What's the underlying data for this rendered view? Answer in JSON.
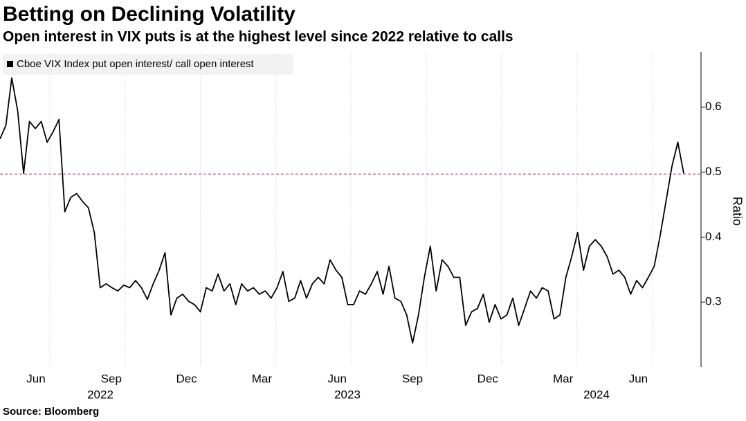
{
  "chart_data": {
    "type": "line",
    "title": "Betting on Declining Volatility",
    "subtitle": "Open interest in VIX puts is at the highest level since 2022 relative to calls",
    "source": "Source: Bloomberg",
    "y_label": "Ratio",
    "x_labels": [
      "Jun",
      "Sep",
      "Dec",
      "Mar",
      "Jun",
      "Sep",
      "Dec",
      "Mar",
      "Jun"
    ],
    "year_labels": [
      "2022",
      "2023",
      "2024"
    ],
    "ylim": [
      0.2,
      0.685
    ],
    "yticks": [
      0.3,
      0.4,
      0.5,
      0.6
    ],
    "reference_line": 0.497,
    "reference_color": "#c0394b",
    "grid": true,
    "legend": "top-left",
    "series": [
      {
        "name": "Cboe VIX Index put open interest/ call open interest",
        "color": "#000000",
        "values": [
          0.551,
          0.572,
          0.645,
          0.594,
          0.498,
          0.578,
          0.567,
          0.578,
          0.546,
          0.562,
          0.581,
          0.439,
          0.461,
          0.467,
          0.455,
          0.445,
          0.407,
          0.322,
          0.328,
          0.322,
          0.317,
          0.326,
          0.322,
          0.333,
          0.322,
          0.304,
          0.328,
          0.349,
          0.376,
          0.28,
          0.306,
          0.312,
          0.301,
          0.296,
          0.285,
          0.322,
          0.317,
          0.343,
          0.317,
          0.328,
          0.296,
          0.328,
          0.317,
          0.322,
          0.312,
          0.317,
          0.306,
          0.322,
          0.347,
          0.301,
          0.306,
          0.333,
          0.306,
          0.328,
          0.338,
          0.328,
          0.365,
          0.349,
          0.338,
          0.296,
          0.296,
          0.317,
          0.312,
          0.328,
          0.347,
          0.312,
          0.355,
          0.306,
          0.301,
          0.28,
          0.237,
          0.28,
          0.338,
          0.386,
          0.317,
          0.365,
          0.355,
          0.338,
          0.338,
          0.264,
          0.285,
          0.29,
          0.312,
          0.269,
          0.296,
          0.274,
          0.28,
          0.306,
          0.264,
          0.29,
          0.317,
          0.306,
          0.322,
          0.317,
          0.274,
          0.28,
          0.338,
          0.37,
          0.407,
          0.349,
          0.386,
          0.396,
          0.386,
          0.37,
          0.343,
          0.349,
          0.338,
          0.312,
          0.333,
          0.322,
          0.338,
          0.355,
          0.402,
          0.455,
          0.509,
          0.546,
          0.498
        ]
      }
    ]
  }
}
